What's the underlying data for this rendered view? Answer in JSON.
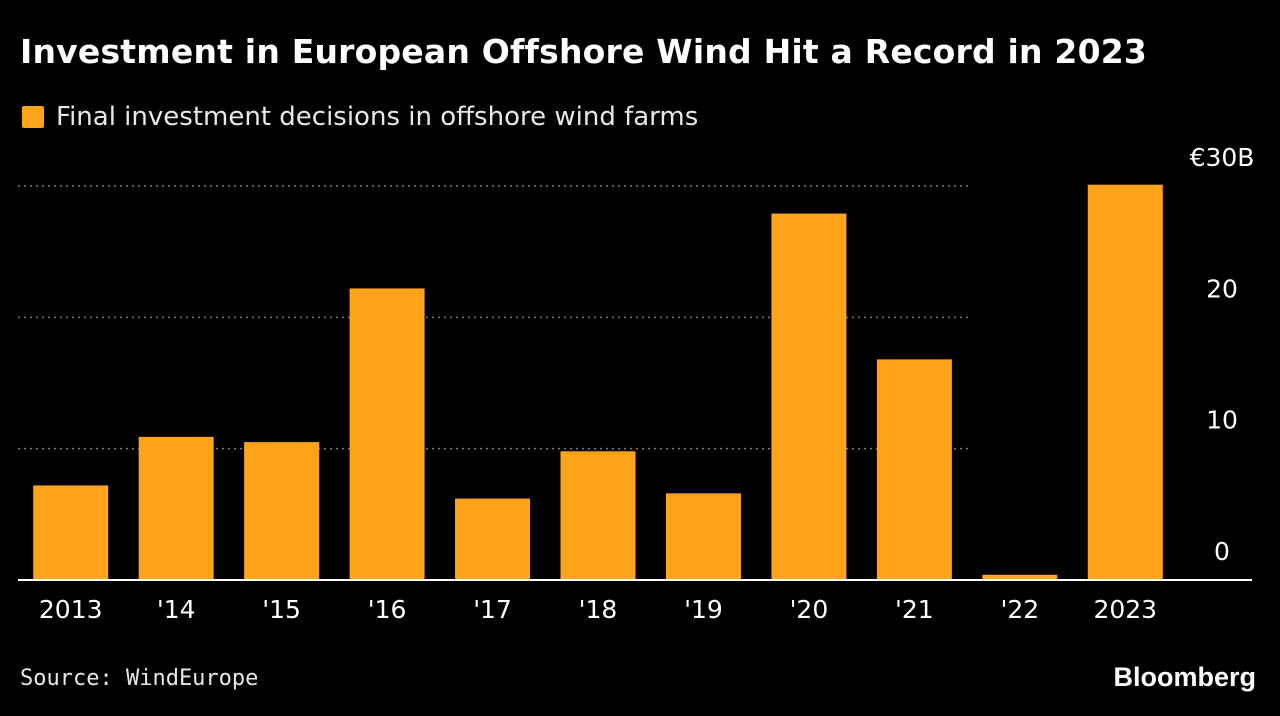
{
  "colors": {
    "bar": "#ffa31a",
    "background": "#000000",
    "grid": "#7a7a7a",
    "axis": "#ffffff",
    "text": "#ffffff"
  },
  "footer": {
    "source": "Source: WindEurope",
    "brand": "Bloomberg"
  },
  "chart_data": {
    "type": "bar",
    "title": "Investment in European Offshore Wind Hit a Record in 2023",
    "legend": [
      "Final investment decisions in offshore wind farms"
    ],
    "legend_placement": "top-left",
    "categories": [
      "2013",
      "'14",
      "'15",
      "'16",
      "'17",
      "'18",
      "'19",
      "'20",
      "'21",
      "'22",
      "2023"
    ],
    "series": [
      {
        "name": "Final investment decisions in offshore wind farms",
        "values": [
          7.2,
          10.9,
          10.5,
          22.2,
          6.2,
          9.8,
          6.6,
          27.9,
          16.8,
          0.4,
          30.1
        ]
      }
    ],
    "ylim": [
      0,
      30
    ],
    "yticks": [
      0,
      10,
      20,
      30
    ],
    "ytick_labels": [
      "0",
      "10",
      "20",
      "€30B"
    ],
    "xlabel": "",
    "ylabel": "",
    "grid": true,
    "y_axis_side": "right"
  }
}
